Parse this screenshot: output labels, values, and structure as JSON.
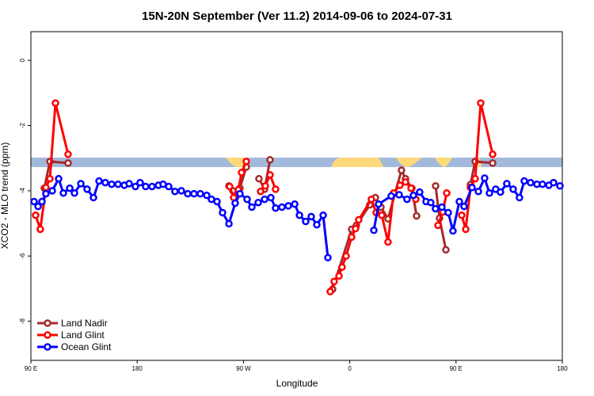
{
  "chart_data": {
    "type": "line",
    "title": "15N-20N September (Ver 11.2)   2014-09-06 to 2024-07-31",
    "xlabel": "Longitude",
    "ylabel": "XCO2 - MLO trend (ppm)",
    "xlim": [
      90,
      540
    ],
    "ylim": [
      -9.2,
      0.88
    ],
    "xticks": [
      {
        "value": 90,
        "label": "90 E"
      },
      180,
      {
        "value": 270,
        "label": "90 W"
      },
      {
        "value": 360,
        "label": "0"
      },
      {
        "value": 450,
        "label": "90 E"
      },
      {
        "value": 540,
        "label": "180"
      }
    ],
    "yticks": [
      0,
      -2,
      -4,
      -6,
      -8
    ],
    "legend": "bottom-left",
    "series": [
      {
        "name": "Land Nadir",
        "color": "#a52a2a",
        "x": [
          101.4,
          106.1,
          121.5,
          null,
          257.7,
          261.0,
          267.0,
          272.4,
          null,
          283.1,
          287.9,
          292.5,
          null,
          345.5,
          361.6,
          365.6,
          377.0,
          381.7,
          386.4,
          392.4,
          403.8,
          407.2,
          412.6,
          416.6,
          null,
          432.7,
          436.0,
          441.4,
          null,
          462.2,
          466.2,
          481.0
        ],
        "values": [
          -3.92,
          -3.1,
          -3.15,
          null,
          -3.85,
          -4.0,
          -3.92,
          -3.27,
          null,
          -3.63,
          -3.95,
          -3.05,
          null,
          -7.02,
          -5.18,
          -5.06,
          -4.43,
          -4.21,
          -4.5,
          -4.86,
          -3.37,
          -3.63,
          -3.92,
          -4.77,
          null,
          -3.85,
          -4.84,
          -5.81,
          null,
          -3.81,
          -3.1,
          -3.15
        ]
      },
      {
        "name": "Land Glint",
        "color": "#ff0000",
        "x": [
          94.0,
          98.0,
          102.7,
          106.1,
          110.8,
          121.5,
          null,
          258.3,
          261.7,
          265.7,
          268.4,
          272.4,
          null,
          284.5,
          288.5,
          292.5,
          297.2,
          null,
          343.5,
          346.8,
          350.9,
          353.5,
          356.9,
          361.6,
          364.9,
          367.6,
          378.3,
          382.4,
          387.1,
          392.4,
          397.1,
          402.5,
          407.2,
          411.9,
          415.9,
          null,
          434.7,
          438.7,
          442.1,
          null,
          454.8,
          458.2,
          462.2,
          466.2,
          470.9,
          481.0
        ],
        "values": [
          -4.75,
          -5.18,
          -3.9,
          -3.63,
          -1.31,
          -2.88,
          null,
          -3.87,
          -4.21,
          -3.97,
          -3.44,
          -3.1,
          null,
          -4.02,
          -3.85,
          -3.51,
          -3.95,
          null,
          -7.09,
          -6.78,
          -6.61,
          -6.34,
          -6.0,
          -5.42,
          -5.16,
          -4.89,
          -4.26,
          -4.67,
          -4.75,
          -5.57,
          -4.07,
          -3.83,
          -3.73,
          -3.92,
          -4.26,
          null,
          -5.06,
          -4.65,
          -4.07,
          null,
          -4.75,
          -5.18,
          -3.9,
          -3.63,
          -1.31,
          -2.88
        ]
      },
      {
        "name": "Ocean Glint",
        "color": "#0000ff",
        "x": [
          92.7,
          96.1,
          99.4,
          102.7,
          108.1,
          113.5,
          117.5,
          122.9,
          126.9,
          132.3,
          137.6,
          143.0,
          147.7,
          153.0,
          158.4,
          163.8,
          169.1,
          173.2,
          178.5,
          182.5,
          187.2,
          192.6,
          198.0,
          202.0,
          206.7,
          212.0,
          217.4,
          222.8,
          228.1,
          233.5,
          238.9,
          242.9,
          247.6,
          252.3,
          257.7,
          263.0,
          267.0,
          273.1,
          277.1,
          282.5,
          287.9,
          293.2,
          297.2,
          302.6,
          308.0,
          313.4,
          317.4,
          322.7,
          327.4,
          332.1,
          337.5,
          341.5,
          null,
          380.4,
          384.4,
          395.1,
          401.8,
          408.5,
          413.9,
          419.2,
          424.6,
          428.6,
          432.6,
          438.0,
          443.4,
          447.4,
          452.8,
          456.8,
          463.5,
          468.9,
          474.2,
          478.3,
          483.6,
          487.6,
          493.0,
          498.4,
          503.7,
          507.8,
          513.1,
          518.5,
          523.2,
          528.6,
          532.6,
          538.0
        ],
        "values": [
          -4.33,
          -4.48,
          -4.33,
          -4.09,
          -4.0,
          -3.63,
          -4.07,
          -3.92,
          -4.07,
          -3.78,
          -3.95,
          -4.21,
          -3.7,
          -3.75,
          -3.8,
          -3.8,
          -3.83,
          -3.78,
          -3.87,
          -3.75,
          -3.87,
          -3.87,
          -3.83,
          -3.8,
          -3.87,
          -4.02,
          -4.0,
          -4.09,
          -4.09,
          -4.09,
          -4.14,
          -4.26,
          -4.33,
          -4.67,
          -5.01,
          -4.38,
          -4.09,
          -4.26,
          -4.5,
          -4.36,
          -4.26,
          -4.21,
          -4.53,
          -4.5,
          -4.46,
          -4.41,
          -4.75,
          -4.94,
          -4.79,
          -5.04,
          -4.75,
          -6.05,
          null,
          -5.21,
          -4.41,
          -4.16,
          -4.12,
          -4.26,
          -4.14,
          -4.04,
          -4.33,
          -4.36,
          -4.55,
          -4.5,
          -4.67,
          -5.23,
          -4.33,
          -4.48,
          -3.9,
          -4.02,
          -3.61,
          -4.07,
          -3.95,
          -4.04,
          -3.78,
          -3.95,
          -4.21,
          -3.7,
          -3.75,
          -3.8,
          -3.8,
          -3.83,
          -3.75,
          -3.85
        ]
      }
    ]
  }
}
